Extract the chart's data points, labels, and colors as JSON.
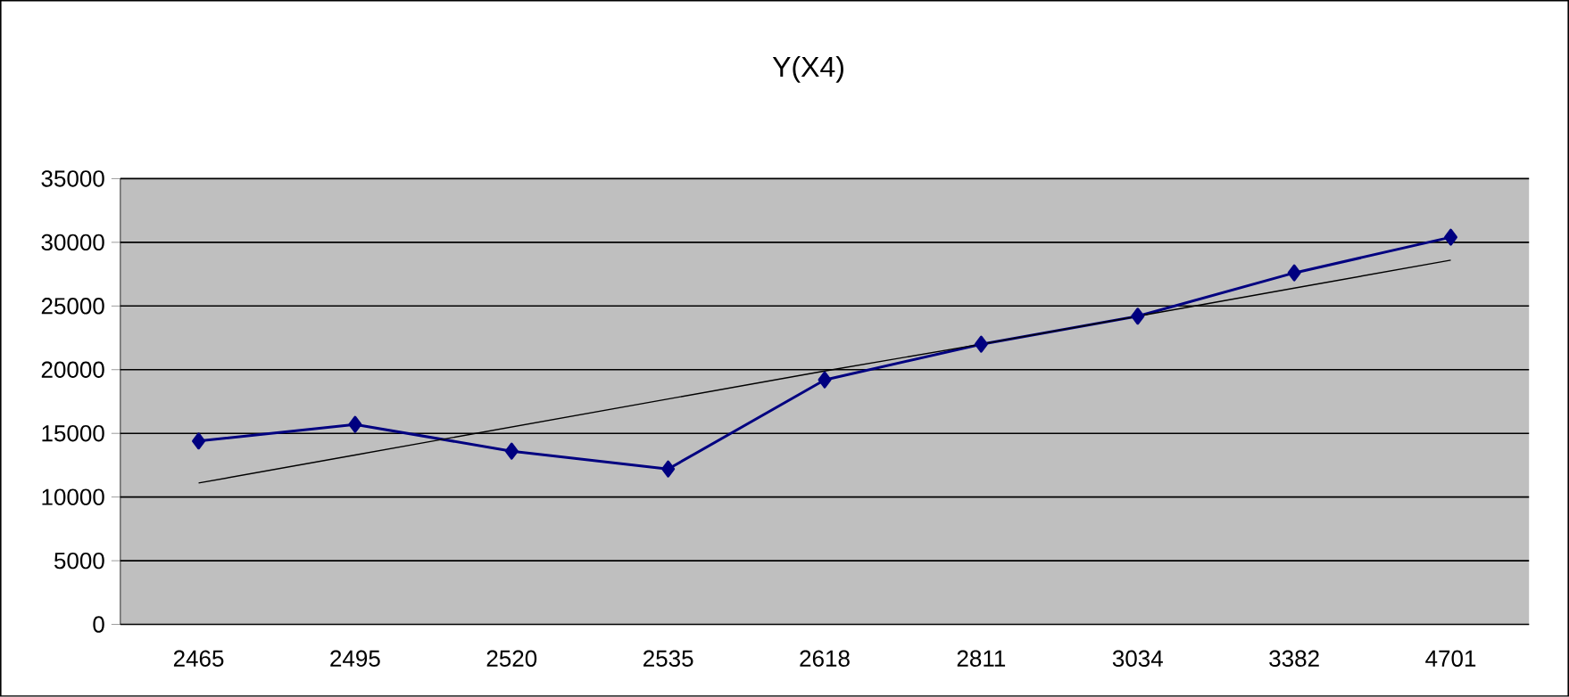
{
  "chart_data": {
    "type": "line",
    "title": "Y(X4)",
    "categories": [
      "2465",
      "2495",
      "2520",
      "2535",
      "2618",
      "2811",
      "3034",
      "3382",
      "4701"
    ],
    "series": [
      {
        "color": "#000080",
        "values": [
          14400,
          15700,
          13600,
          12200,
          19200,
          22000,
          24200,
          27600,
          30400
        ],
        "marker": "diamond"
      },
      {
        "color": "#000000",
        "values": [
          11100,
          13300,
          15500,
          17700,
          19900,
          22000,
          24200,
          26400,
          28600
        ],
        "marker": "none"
      }
    ],
    "ylim": [
      0,
      35000
    ],
    "yticks": [
      0,
      5000,
      10000,
      15000,
      20000,
      25000,
      30000,
      35000
    ],
    "grid": "y",
    "line_style": "solid"
  }
}
